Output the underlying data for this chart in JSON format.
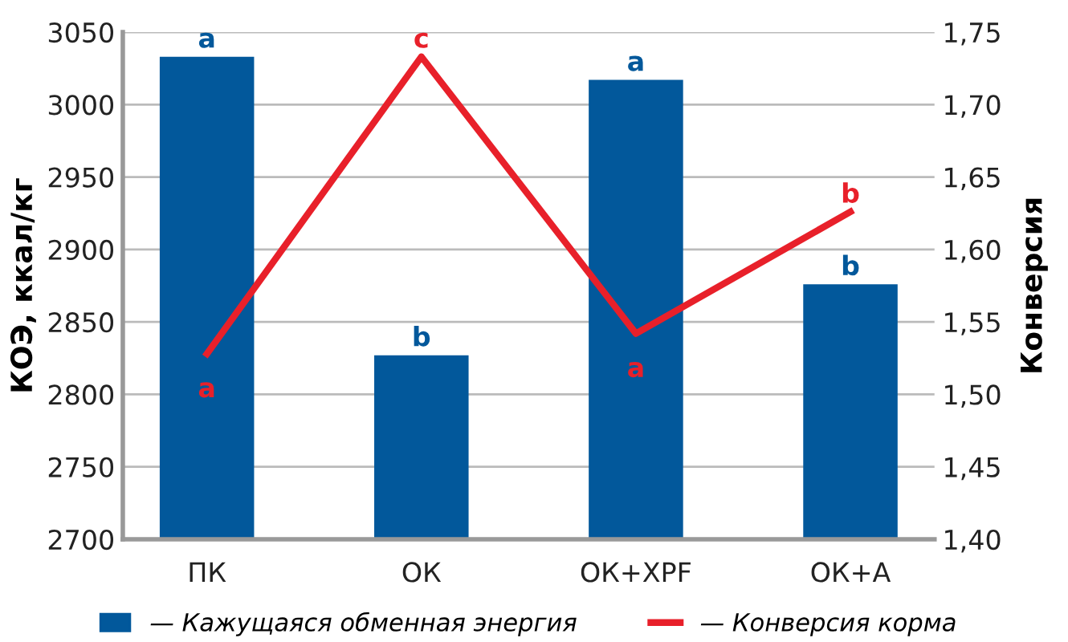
{
  "chart_data": {
    "type": "bar",
    "ylabel": "КОЭ, ккал/кг",
    "y2label": "Конверсия",
    "categories": [
      "ПК",
      "ОК",
      "ОК+XPF",
      "ОК+А"
    ],
    "series": [
      {
        "name": "— Кажущаяся обменная энергия",
        "color": "#02589b",
        "values": [
          3033,
          2827,
          3017,
          2876
        ],
        "value_labels": [
          "a",
          "b",
          "a",
          "b"
        ]
      },
      {
        "name": "— Конверсия корма",
        "type": "line",
        "axis": "y2",
        "color": "#e8202a",
        "values": [
          1.528,
          1.733,
          1.542,
          1.626
        ],
        "value_labels": [
          "a",
          "c",
          "a",
          "b"
        ]
      }
    ],
    "ylim": [
      2700,
      3050
    ],
    "yticks": [
      2700,
      2750,
      2800,
      2850,
      2900,
      2950,
      3000,
      3050
    ],
    "y2lim": [
      1.4,
      1.75
    ],
    "y2ticks": [
      {
        "value": 1.4,
        "label": "1,40"
      },
      {
        "value": 1.45,
        "label": "1,45"
      },
      {
        "value": 1.5,
        "label": "1,50"
      },
      {
        "value": 1.55,
        "label": "1,55"
      },
      {
        "value": 1.6,
        "label": "1,60"
      },
      {
        "value": 1.65,
        "label": "1,65"
      },
      {
        "value": 1.7,
        "label": "1,70"
      },
      {
        "value": 1.75,
        "label": "1,75"
      }
    ],
    "grid": "y",
    "legend": "bottom",
    "marker": "none",
    "line_style": "solid"
  }
}
